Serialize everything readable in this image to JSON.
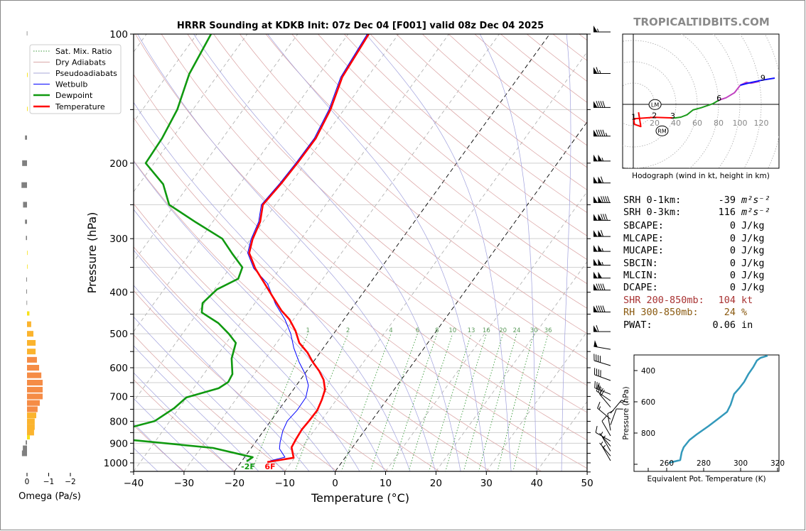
{
  "title": "HRRR Sounding at KDKB Init: 07z Dec 04 [F001] valid 08z Dec 04 2025",
  "watermark": "TROPICALTIDBITS.COM",
  "legend": {
    "items": [
      {
        "label": "Sat. Mix. Ratio",
        "color": "#3a9a3a",
        "style": "dotted"
      },
      {
        "label": "Dry Adiabats",
        "color": "#d9a8a8",
        "style": "solid"
      },
      {
        "label": "Pseudoadiabats",
        "color": "#a8a8d9",
        "style": "solid"
      },
      {
        "label": "Wetbulb",
        "color": "#0000ff",
        "style": "solid"
      },
      {
        "label": "Dewpoint",
        "color": "#109910",
        "style": "solid"
      },
      {
        "label": "Temperature",
        "color": "#ff0000",
        "style": "solid"
      }
    ]
  },
  "surface_labels": {
    "dewpoint": "-2F",
    "temperature": "6F"
  },
  "stats": {
    "rows": [
      {
        "label": "SRH 0-1km:",
        "value": "-39",
        "unit": "m²s⁻²",
        "color": "#000000"
      },
      {
        "label": "SRH 0-3km:",
        "value": "116",
        "unit": "m²s⁻²",
        "color": "#000000"
      },
      {
        "label": "SBCAPE:",
        "value": "0",
        "unit": "J/kg",
        "color": "#000000"
      },
      {
        "label": "MLCAPE:",
        "value": "0",
        "unit": "J/kg",
        "color": "#000000"
      },
      {
        "label": "MUCAPE:",
        "value": "0",
        "unit": "J/kg",
        "color": "#000000"
      },
      {
        "label": "SBCIN:",
        "value": "0",
        "unit": "J/kg",
        "color": "#000000"
      },
      {
        "label": "MLCIN:",
        "value": "0",
        "unit": "J/kg",
        "color": "#000000"
      },
      {
        "label": "DCAPE:",
        "value": "0",
        "unit": "J/kg",
        "color": "#000000"
      },
      {
        "label": "SHR 200-850mb:",
        "value": "104",
        "unit": "kt",
        "color": "#a83232"
      },
      {
        "label": "RH 300-850mb:",
        "value": "24",
        "unit": "%",
        "color": "#8a5a10"
      },
      {
        "label": "PWAT:",
        "value": "0.06",
        "unit": "in",
        "color": "#000000"
      }
    ]
  },
  "chart_data": [
    {
      "type": "line",
      "name": "skew-t",
      "xlabel": "Temperature (°C)",
      "ylabel": "Pressure (hPa)",
      "xlim": [
        -40,
        50
      ],
      "ylim": [
        1050,
        100
      ],
      "yscale": "log",
      "xticks": [
        "−40",
        "−30",
        "−20",
        "−10",
        "0",
        "10",
        "20",
        "30",
        "40",
        "50"
      ],
      "yticks": [
        "100",
        "200",
        "300",
        "400",
        "500",
        "600",
        "700",
        "800",
        "900",
        "1000"
      ],
      "grid": true,
      "legend_position": "top-left",
      "mixing_ratio_labels": [
        "1",
        "2",
        "4",
        "6",
        "8",
        "10",
        "13",
        "16",
        "20",
        "24",
        "30",
        "36"
      ],
      "series": [
        {
          "name": "Temperature",
          "color": "#ff0000",
          "points": [
            [
              996,
              -14.8
            ],
            [
              973,
              -10.2
            ],
            [
              920,
              -12.1
            ],
            [
              878,
              -12.4
            ],
            [
              836,
              -12.6
            ],
            [
              799,
              -12.4
            ],
            [
              754,
              -12.3
            ],
            [
              712,
              -12.9
            ],
            [
              675,
              -13.7
            ],
            [
              640,
              -15.4
            ],
            [
              611,
              -17.5
            ],
            [
              582,
              -20.1
            ],
            [
              553,
              -22.5
            ],
            [
              525,
              -25.5
            ],
            [
              492,
              -28.0
            ],
            [
              463,
              -30.8
            ],
            [
              442,
              -33.6
            ],
            [
              413,
              -37.0
            ],
            [
              380,
              -41.1
            ],
            [
              352,
              -44.9
            ],
            [
              324,
              -48.3
            ],
            [
              301,
              -49.6
            ],
            [
              274,
              -50.6
            ],
            [
              250,
              -52.5
            ],
            [
              223,
              -51.9
            ],
            [
              199,
              -51.6
            ],
            [
              175,
              -51.5
            ],
            [
              150,
              -52.7
            ],
            [
              126,
              -55.0
            ],
            [
              100,
              -55.9
            ]
          ]
        },
        {
          "name": "Dewpoint",
          "color": "#109910",
          "points": [
            [
              992,
              -19.0
            ],
            [
              970,
              -18.4
            ],
            [
              962,
              -20.0
            ],
            [
              923,
              -27.6
            ],
            [
              885,
              -44.5
            ],
            [
              850,
              -47.5
            ],
            [
              823,
              -46.4
            ],
            [
              799,
              -43.0
            ],
            [
              746,
              -41.0
            ],
            [
              704,
              -40.1
            ],
            [
              670,
              -35.0
            ],
            [
              648,
              -34.0
            ],
            [
              621,
              -34.3
            ],
            [
              571,
              -36.7
            ],
            [
              525,
              -38.1
            ],
            [
              500,
              -40.8
            ],
            [
              472,
              -44.4
            ],
            [
              446,
              -49.2
            ],
            [
              424,
              -50.4
            ],
            [
              394,
              -49.5
            ],
            [
              372,
              -46.8
            ],
            [
              350,
              -47.6
            ],
            [
              325,
              -51.6
            ],
            [
              300,
              -55.7
            ],
            [
              275,
              -63.2
            ],
            [
              250,
              -71.1
            ],
            [
              224,
              -75.2
            ],
            [
              200,
              -81.7
            ],
            [
              175,
              -82.0
            ],
            [
              150,
              -83.1
            ],
            [
              124,
              -85.8
            ],
            [
              100,
              -87.2
            ]
          ]
        },
        {
          "name": "Wetbulb",
          "color": "#0000ff",
          "points": [
            [
              989,
              -14.4
            ],
            [
              970,
              -12.0
            ],
            [
              927,
              -14.3
            ],
            [
              895,
              -15.1
            ],
            [
              842,
              -16.2
            ],
            [
              799,
              -16.7
            ],
            [
              754,
              -16.3
            ],
            [
              704,
              -16.4
            ],
            [
              660,
              -17.6
            ],
            [
              623,
              -19.7
            ],
            [
              582,
              -22.8
            ],
            [
              539,
              -25.9
            ],
            [
              500,
              -28.5
            ],
            [
              463,
              -31.7
            ],
            [
              426,
              -35.8
            ],
            [
              382,
              -40.3
            ],
            [
              352,
              -45.2
            ],
            [
              324,
              -48.6
            ],
            [
              301,
              -49.9
            ],
            [
              274,
              -50.9
            ],
            [
              250,
              -52.8
            ],
            [
              223,
              -52.2
            ],
            [
              199,
              -51.9
            ],
            [
              175,
              -51.8
            ],
            [
              150,
              -53.0
            ],
            [
              126,
              -55.3
            ],
            [
              100,
              -56.2
            ]
          ]
        }
      ],
      "wind_barbs": [
        {
          "p": 100,
          "dir": 270,
          "spd": 55
        },
        {
          "p": 125,
          "dir": 270,
          "spd": 65
        },
        {
          "p": 150,
          "dir": 270,
          "spd": 90
        },
        {
          "p": 175,
          "dir": 270,
          "spd": 95
        },
        {
          "p": 200,
          "dir": 270,
          "spd": 105
        },
        {
          "p": 225,
          "dir": 270,
          "spd": 110
        },
        {
          "p": 250,
          "dir": 270,
          "spd": 140
        },
        {
          "p": 275,
          "dir": 270,
          "spd": 130
        },
        {
          "p": 300,
          "dir": 270,
          "spd": 110
        },
        {
          "p": 325,
          "dir": 270,
          "spd": 105
        },
        {
          "p": 350,
          "dir": 270,
          "spd": 105
        },
        {
          "p": 375,
          "dir": 270,
          "spd": 100
        },
        {
          "p": 400,
          "dir": 270,
          "spd": 90
        },
        {
          "p": 450,
          "dir": 270,
          "spd": 90
        },
        {
          "p": 500,
          "dir": 270,
          "spd": 60
        },
        {
          "p": 550,
          "dir": 280,
          "spd": 50
        },
        {
          "p": 600,
          "dir": 287,
          "spd": 40
        },
        {
          "p": 650,
          "dir": 290,
          "spd": 40
        },
        {
          "p": 700,
          "dir": 292,
          "spd": 35
        },
        {
          "p": 725,
          "dir": 305,
          "spd": 25
        },
        {
          "p": 750,
          "dir": 320,
          "spd": 20
        },
        {
          "p": 775,
          "dir": 40,
          "spd": 15
        },
        {
          "p": 800,
          "dir": 310,
          "spd": 15
        },
        {
          "p": 825,
          "dir": 20,
          "spd": 10
        },
        {
          "p": 850,
          "dir": 350,
          "spd": 10
        },
        {
          "p": 875,
          "dir": 330,
          "spd": 10
        },
        {
          "p": 900,
          "dir": 300,
          "spd": 10
        },
        {
          "p": 925,
          "dir": 320,
          "spd": 5
        },
        {
          "p": 950,
          "dir": 330,
          "spd": 5
        },
        {
          "p": 975,
          "dir": 320,
          "spd": 5
        },
        {
          "p": 1000,
          "dir": 330,
          "spd": 5
        }
      ]
    },
    {
      "type": "bar",
      "name": "omega",
      "xlabel": "Omega (Pa/s)",
      "xticks": [
        "0",
        "−1",
        "−2"
      ],
      "colors": {
        "ascent_weak": "#f7e21a",
        "ascent_mid": "#fbb42e",
        "ascent_strong": "#f58c46",
        "descent": "#808080"
      },
      "pressures": [
        100,
        125,
        150,
        175,
        200,
        225,
        250,
        275,
        300,
        325,
        350,
        375,
        400,
        425,
        450,
        475,
        500,
        525,
        550,
        575,
        600,
        625,
        650,
        675,
        700,
        725,
        750,
        775,
        800,
        825,
        850,
        875,
        900,
        925,
        950
      ],
      "values": [
        0.01,
        -0.03,
        -0.03,
        0.09,
        0.22,
        0.25,
        0.18,
        0.09,
        0.05,
        0,
        0,
        0.03,
        0.03,
        0.02,
        -0.11,
        -0.19,
        -0.29,
        -0.39,
        -0.39,
        -0.45,
        -0.55,
        -0.65,
        -0.71,
        -0.71,
        -0.71,
        -0.58,
        -0.48,
        -0.42,
        -0.35,
        -0.35,
        -0.32,
        -0.13,
        0.06,
        0.19,
        0.23
      ]
    },
    {
      "type": "line",
      "name": "hodograph",
      "caption": "Hodograph (wind in kt, height in km)",
      "ring_labels": [
        "20",
        "40",
        "60",
        "80",
        "100",
        "120"
      ],
      "segments": [
        {
          "color": "#ff0000",
          "points": [
            [
              4.9,
              -7.4
            ],
            [
              7.1,
              -20.9
            ],
            [
              1.1,
              -18.7
            ],
            [
              0.4,
              -13.5
            ],
            [
              19.8,
              -12.2
            ],
            [
              37,
              -12.7
            ]
          ]
        },
        {
          "color": "#1a9a1a",
          "points": [
            [
              37,
              -12.7
            ],
            [
              39.3,
              -12.7
            ],
            [
              44.7,
              -12
            ],
            [
              50.4,
              -9.8
            ],
            [
              56,
              -5.3
            ],
            [
              63.8,
              -3.1
            ],
            [
              74.9,
              0.7
            ],
            [
              80.4,
              4
            ]
          ]
        },
        {
          "color": "#c040c0",
          "points": [
            [
              80.4,
              4
            ],
            [
              87.1,
              6.2
            ],
            [
              94.9,
              10.9
            ],
            [
              100.4,
              18
            ],
            [
              106,
              20.7
            ],
            [
              110.4,
              19.8
            ],
            [
              118.2,
              21.6
            ]
          ]
        },
        {
          "color": "#1010ff",
          "points": [
            [
              100.4,
              18
            ],
            [
              110,
              20.5
            ],
            [
              121.6,
              22.9
            ],
            [
              132.7,
              24.7
            ]
          ]
        }
      ],
      "height_labels": [
        {
          "text": "1",
          "u": 0.4,
          "v": -13.5
        },
        {
          "text": "2",
          "u": 19.8,
          "v": -12.2
        },
        {
          "text": "3",
          "u": 37,
          "v": -12.7
        },
        {
          "text": "6",
          "u": 80.4,
          "v": 4
        },
        {
          "text": "9",
          "u": 121.6,
          "v": 22.9
        }
      ],
      "storm_motions": [
        {
          "text": "LM",
          "u": 20.4,
          "v": -0.2
        },
        {
          "text": "RM",
          "u": 27,
          "v": -24.9
        }
      ]
    },
    {
      "type": "line",
      "name": "theta-e",
      "xlabel": "Equivalent Pot. Temperature (K)",
      "ylabel": "Pressure (hPa)",
      "xticks": [
        "260",
        "280",
        "300",
        "320"
      ],
      "yticks": [
        "400",
        "600",
        "800"
      ],
      "color": "#3399bb",
      "points": [
        [
          991,
          261.2
        ],
        [
          973,
          267.3
        ],
        [
          923,
          268.1
        ],
        [
          891,
          269.2
        ],
        [
          845,
          272.3
        ],
        [
          809,
          276.2
        ],
        [
          755,
          282.7
        ],
        [
          700,
          288.8
        ],
        [
          664,
          292.7
        ],
        [
          618,
          294.6
        ],
        [
          550,
          296.5
        ],
        [
          514,
          299.2
        ],
        [
          473,
          301.9
        ],
        [
          423,
          304.2
        ],
        [
          377,
          306.9
        ],
        [
          336,
          308.8
        ],
        [
          318,
          310.8
        ],
        [
          305,
          314.6
        ]
      ]
    }
  ]
}
